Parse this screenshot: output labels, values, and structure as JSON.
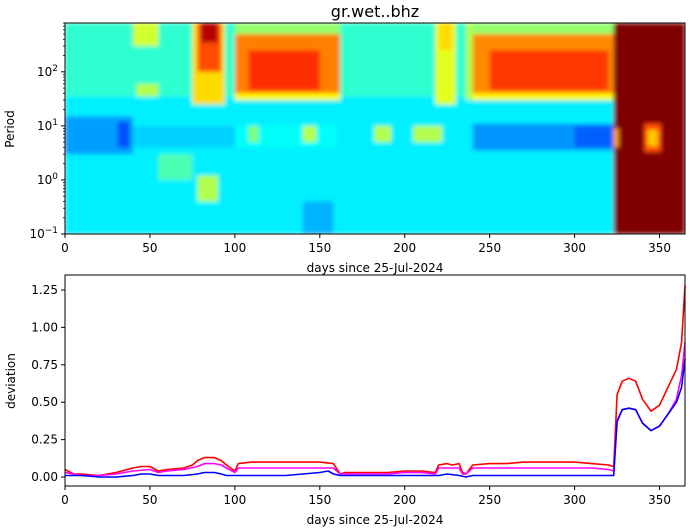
{
  "title": "gr.wet..bhz",
  "colors": {
    "series_red": "#ff0000",
    "series_magenta": "#ff00ff",
    "series_blue": "#0000ff",
    "heat_dark": "#800000"
  },
  "chart_data": [
    {
      "type": "heatmap",
      "title": "gr.wet..bhz",
      "xlabel": "days since 25-Jul-2024",
      "ylabel": "Period",
      "yscale": "log",
      "xlim": [
        0,
        365
      ],
      "ylim": [
        0.1,
        800
      ],
      "xticks": [
        0,
        50,
        100,
        150,
        200,
        250,
        300,
        350
      ],
      "yticks": [
        {
          "value": 0.1,
          "base": "10",
          "exp": "−1"
        },
        {
          "value": 1,
          "base": "10",
          "exp": "0"
        },
        {
          "value": 10,
          "base": "10",
          "exp": "1"
        },
        {
          "value": 100,
          "base": "10",
          "exp": "2"
        }
      ],
      "colormap": "jet",
      "blocks": [
        {
          "x0": 0,
          "x1": 365,
          "y0": 0.1,
          "y1": 800,
          "v": 0.36
        },
        {
          "x0": 0,
          "x1": 365,
          "y0": 35,
          "y1": 800,
          "v": 0.42
        },
        {
          "x0": 0,
          "x1": 40,
          "y0": 3,
          "y1": 15,
          "v": 0.28
        },
        {
          "x0": 40,
          "x1": 100,
          "y0": 4,
          "y1": 10,
          "v": 0.33
        },
        {
          "x0": 100,
          "x1": 160,
          "y0": 4,
          "y1": 10,
          "v": 0.38
        },
        {
          "x0": 240,
          "x1": 323,
          "y0": 3.5,
          "y1": 11,
          "v": 0.27
        },
        {
          "x0": 300,
          "x1": 323,
          "y0": 4,
          "y1": 10,
          "v": 0.22
        },
        {
          "x0": 31,
          "x1": 38,
          "y0": 4,
          "y1": 12,
          "v": 0.2
        },
        {
          "x0": 40,
          "x1": 55,
          "y0": 300,
          "y1": 800,
          "v": 0.58
        },
        {
          "x0": 42,
          "x1": 55,
          "y0": 35,
          "y1": 60,
          "v": 0.55
        },
        {
          "x0": 55,
          "x1": 75,
          "y0": 1,
          "y1": 3,
          "v": 0.45
        },
        {
          "x0": 75,
          "x1": 94,
          "y0": 25,
          "y1": 800,
          "v": 0.66
        },
        {
          "x0": 78,
          "x1": 92,
          "y0": 100,
          "y1": 800,
          "v": 0.8
        },
        {
          "x0": 80,
          "x1": 90,
          "y0": 350,
          "y1": 800,
          "v": 0.95
        },
        {
          "x0": 78,
          "x1": 90,
          "y0": 0.4,
          "y1": 1.2,
          "v": 0.55
        },
        {
          "x0": 100,
          "x1": 162,
          "y0": 500,
          "y1": 800,
          "v": 0.52
        },
        {
          "x0": 100,
          "x1": 162,
          "y0": 35,
          "y1": 500,
          "v": 0.75
        },
        {
          "x0": 108,
          "x1": 150,
          "y0": 45,
          "y1": 250,
          "v": 0.83
        },
        {
          "x0": 100,
          "x1": 162,
          "y0": 30,
          "y1": 40,
          "v": 0.63
        },
        {
          "x0": 108,
          "x1": 114,
          "y0": 5,
          "y1": 10,
          "v": 0.5
        },
        {
          "x0": 140,
          "x1": 148,
          "y0": 5,
          "y1": 10,
          "v": 0.55
        },
        {
          "x0": 182,
          "x1": 192,
          "y0": 5,
          "y1": 10,
          "v": 0.55
        },
        {
          "x0": 205,
          "x1": 222,
          "y0": 5,
          "y1": 10,
          "v": 0.55
        },
        {
          "x0": 140,
          "x1": 158,
          "y0": 0.1,
          "y1": 0.4,
          "v": 0.3
        },
        {
          "x0": 218,
          "x1": 230,
          "y0": 25,
          "y1": 800,
          "v": 0.6
        },
        {
          "x0": 220,
          "x1": 228,
          "y0": 250,
          "y1": 800,
          "v": 0.66
        },
        {
          "x0": 236,
          "x1": 240,
          "y0": 30,
          "y1": 800,
          "v": 0.55
        },
        {
          "x0": 240,
          "x1": 323,
          "y0": 500,
          "y1": 800,
          "v": 0.52
        },
        {
          "x0": 240,
          "x1": 323,
          "y0": 35,
          "y1": 500,
          "v": 0.74
        },
        {
          "x0": 250,
          "x1": 320,
          "y0": 45,
          "y1": 250,
          "v": 0.82
        },
        {
          "x0": 240,
          "x1": 323,
          "y0": 30,
          "y1": 40,
          "v": 0.63
        },
        {
          "x0": 323,
          "x1": 365,
          "y0": 0.1,
          "y1": 800,
          "v": 1.0
        },
        {
          "x0": 323,
          "x1": 326,
          "y0": 4,
          "y1": 9,
          "v": 0.72
        },
        {
          "x0": 341,
          "x1": 351,
          "y0": 3.3,
          "y1": 11,
          "v": 0.8
        },
        {
          "x0": 343,
          "x1": 349,
          "y0": 4.2,
          "y1": 8.5,
          "v": 0.68
        }
      ]
    },
    {
      "type": "line",
      "xlabel": "days since 25-Jul-2024",
      "ylabel": "deviation",
      "xlim": [
        0,
        365
      ],
      "ylim": [
        -0.06,
        1.35
      ],
      "xticks": [
        0,
        50,
        100,
        150,
        200,
        250,
        300,
        350
      ],
      "yticks": [
        0.0,
        0.25,
        0.5,
        0.75,
        1.0,
        1.25
      ],
      "ytick_labels": [
        "0.00",
        "0.25",
        "0.50",
        "0.75",
        "1.00",
        "1.25"
      ],
      "series": [
        {
          "color": "#ff0000",
          "x": [
            0,
            5,
            10,
            20,
            25,
            30,
            40,
            45,
            50,
            55,
            60,
            70,
            75,
            78,
            82,
            88,
            92,
            95,
            100,
            102,
            110,
            120,
            130,
            140,
            150,
            158,
            162,
            165,
            170,
            180,
            190,
            200,
            210,
            218,
            220,
            225,
            228,
            232,
            234,
            236,
            240,
            250,
            260,
            270,
            280,
            290,
            300,
            310,
            320,
            323,
            325,
            328,
            332,
            336,
            340,
            345,
            350,
            355,
            360,
            363,
            365
          ],
          "y": [
            0.05,
            0.02,
            0.02,
            0.01,
            0.02,
            0.03,
            0.06,
            0.07,
            0.07,
            0.04,
            0.05,
            0.06,
            0.08,
            0.11,
            0.13,
            0.13,
            0.11,
            0.08,
            0.04,
            0.09,
            0.1,
            0.1,
            0.1,
            0.1,
            0.1,
            0.09,
            0.02,
            0.03,
            0.03,
            0.03,
            0.03,
            0.04,
            0.04,
            0.03,
            0.08,
            0.09,
            0.08,
            0.09,
            0.03,
            0.02,
            0.08,
            0.09,
            0.09,
            0.1,
            0.1,
            0.1,
            0.1,
            0.09,
            0.08,
            0.07,
            0.55,
            0.64,
            0.66,
            0.64,
            0.52,
            0.44,
            0.48,
            0.6,
            0.72,
            0.9,
            1.28
          ]
        },
        {
          "color": "#ff00ff",
          "x": [
            0,
            10,
            20,
            30,
            40,
            50,
            55,
            60,
            70,
            78,
            82,
            88,
            92,
            95,
            100,
            102,
            110,
            120,
            130,
            140,
            150,
            158,
            162,
            170,
            180,
            190,
            200,
            210,
            218,
            220,
            225,
            232,
            234,
            236,
            240,
            250,
            260,
            270,
            280,
            290,
            300,
            310,
            320,
            323,
            325,
            328,
            332,
            336,
            340,
            345,
            350,
            355,
            360,
            363,
            365
          ],
          "y": [
            0.03,
            0.01,
            0.01,
            0.02,
            0.04,
            0.05,
            0.03,
            0.04,
            0.05,
            0.07,
            0.09,
            0.09,
            0.08,
            0.06,
            0.03,
            0.06,
            0.06,
            0.06,
            0.06,
            0.06,
            0.06,
            0.06,
            0.02,
            0.02,
            0.02,
            0.02,
            0.03,
            0.03,
            0.02,
            0.06,
            0.06,
            0.06,
            0.02,
            0.02,
            0.06,
            0.06,
            0.06,
            0.06,
            0.06,
            0.06,
            0.06,
            0.06,
            0.05,
            0.04,
            0.38,
            0.45,
            0.46,
            0.45,
            0.36,
            0.31,
            0.34,
            0.42,
            0.52,
            0.68,
            0.9
          ]
        },
        {
          "color": "#0000ff",
          "x": [
            0,
            10,
            20,
            30,
            40,
            45,
            50,
            55,
            60,
            70,
            78,
            82,
            88,
            92,
            95,
            100,
            110,
            120,
            130,
            140,
            150,
            155,
            158,
            162,
            170,
            180,
            190,
            200,
            210,
            220,
            225,
            232,
            236,
            240,
            250,
            260,
            270,
            280,
            290,
            300,
            310,
            320,
            323,
            325,
            328,
            332,
            336,
            340,
            345,
            350,
            355,
            360,
            363,
            365
          ],
          "y": [
            0.01,
            0.01,
            0.0,
            0.0,
            0.01,
            0.02,
            0.02,
            0.01,
            0.01,
            0.01,
            0.02,
            0.03,
            0.03,
            0.02,
            0.01,
            0.01,
            0.01,
            0.01,
            0.01,
            0.02,
            0.03,
            0.04,
            0.02,
            0.01,
            0.01,
            0.01,
            0.01,
            0.01,
            0.01,
            0.01,
            0.02,
            0.01,
            0.0,
            0.01,
            0.01,
            0.01,
            0.01,
            0.01,
            0.01,
            0.01,
            0.01,
            0.01,
            0.01,
            0.37,
            0.45,
            0.46,
            0.45,
            0.36,
            0.31,
            0.34,
            0.42,
            0.5,
            0.6,
            0.79
          ]
        }
      ]
    }
  ]
}
